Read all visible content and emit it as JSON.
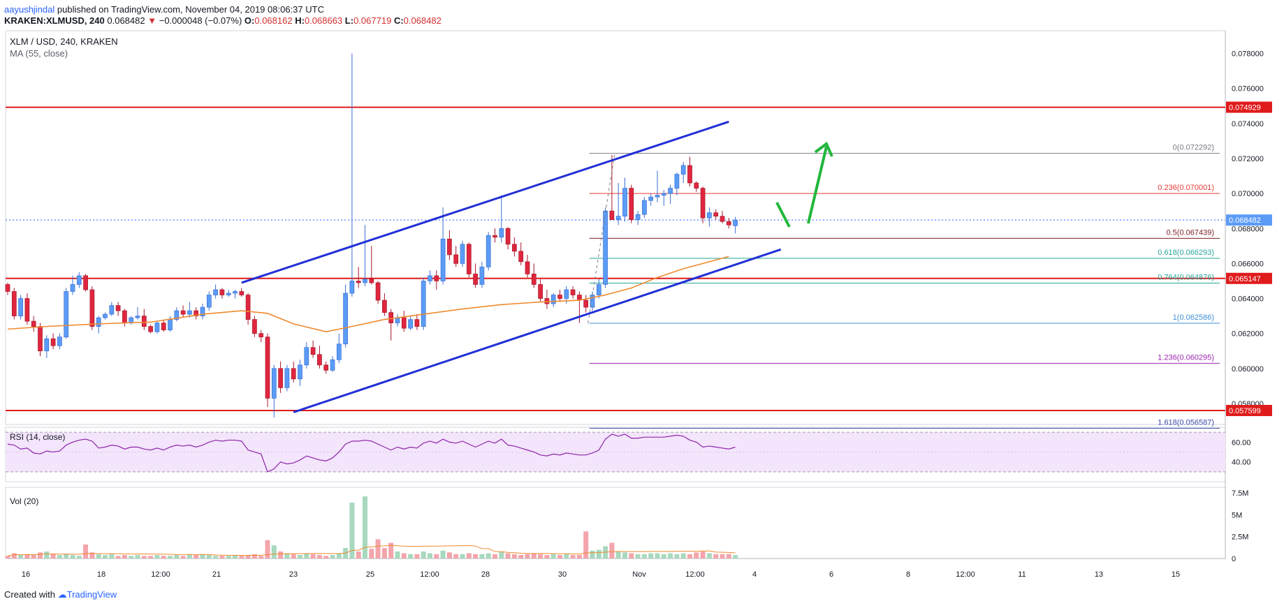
{
  "header": {
    "user": "aayushjindal",
    "published_text": "published on TradingView.com, November 04, 2019 08:06:37 UTC",
    "symbol_text": "KRAKEN:XLMUSD, 240",
    "last": "0.068482",
    "change": "−0.000048 (−0.07%)",
    "open_label": "O:",
    "open": "0.068162",
    "high_label": "H:",
    "high": "0.068663",
    "low_label": "L:",
    "low": "0.067719",
    "close_label": "C:",
    "close": "0.068482"
  },
  "colors": {
    "up": "#5b9cf6",
    "down": "#e0263f",
    "ma": "#ef8a2e",
    "channel": "#2130d6",
    "resistance": "#e01b1b",
    "arrow": "#22b73c",
    "rsi_line": "#8e24aa",
    "rsi_band": "#f3e5fb",
    "vol_up": "#a8d8be",
    "vol_down": "#f3a5ab"
  },
  "chart_data": [
    {
      "type": "candlestick",
      "title": "XLM / USD, 240, KRAKEN",
      "indicator_label": "MA (55, close)",
      "ylim": [
        0.0568,
        0.0793
      ],
      "y_ticks": [
        "0.078000",
        "0.076000",
        "0.074000",
        "0.072000",
        "0.070000",
        "0.068000",
        "0.066000",
        "0.064000",
        "0.062000",
        "0.060000",
        "0.058000"
      ],
      "x_ticks": [
        "16",
        "18",
        "12:00",
        "21",
        "23",
        "25",
        "12:00",
        "28",
        "30",
        "Nov",
        "12:00",
        "4",
        "6",
        "8",
        "12:00",
        "11",
        "13",
        "15"
      ],
      "last_price_label": "0.068482",
      "horizontal_levels": [
        "0.074929",
        "0.065147",
        "0.057599"
      ],
      "fibonacci": [
        {
          "label": "0(0.072292)",
          "value": 0.072292,
          "color": "#787b86"
        },
        {
          "label": "0.236(0.070001)",
          "value": 0.070001,
          "color": "#e53935"
        },
        {
          "label": "0.5(0.067439)",
          "value": 0.067439,
          "color": "#7b1e1e"
        },
        {
          "label": "0.618(0.066293)",
          "value": 0.066293,
          "color": "#26a69a"
        },
        {
          "label": "0.764(0.064876)",
          "value": 0.064876,
          "color": "#26a69a"
        },
        {
          "label": "1(0.062586)",
          "value": 0.062586,
          "color": "#3d8fd6"
        },
        {
          "label": "1.236(0.060295)",
          "value": 0.060295,
          "color": "#9c27b0"
        },
        {
          "label": "1.618(0.056587)",
          "value": 0.056587,
          "color": "#3949ab"
        }
      ],
      "candles": [
        [
          0.0648,
          0.0649,
          0.0642,
          0.0644
        ],
        [
          0.0644,
          0.0646,
          0.0628,
          0.063
        ],
        [
          0.063,
          0.0642,
          0.0628,
          0.064
        ],
        [
          0.064,
          0.0643,
          0.0625,
          0.0627
        ],
        [
          0.0627,
          0.063,
          0.0621,
          0.0624
        ],
        [
          0.0624,
          0.0626,
          0.0607,
          0.061
        ],
        [
          0.061,
          0.0619,
          0.0606,
          0.0617
        ],
        [
          0.0617,
          0.062,
          0.0611,
          0.0613
        ],
        [
          0.0613,
          0.062,
          0.0611,
          0.0618
        ],
        [
          0.0618,
          0.0646,
          0.0617,
          0.0644
        ],
        [
          0.0644,
          0.0653,
          0.0642,
          0.0648
        ],
        [
          0.0648,
          0.0655,
          0.0646,
          0.0653
        ],
        [
          0.0653,
          0.0654,
          0.0644,
          0.0645
        ],
        [
          0.0645,
          0.0647,
          0.0622,
          0.0624
        ],
        [
          0.0624,
          0.063,
          0.062,
          0.0629
        ],
        [
          0.0629,
          0.0632,
          0.0628,
          0.0631
        ],
        [
          0.0631,
          0.0638,
          0.063,
          0.0636
        ],
        [
          0.0636,
          0.0638,
          0.063,
          0.0633
        ],
        [
          0.0633,
          0.0634,
          0.0624,
          0.0626
        ],
        [
          0.0626,
          0.063,
          0.0625,
          0.0629
        ],
        [
          0.0629,
          0.0635,
          0.0628,
          0.063
        ],
        [
          0.063,
          0.0634,
          0.0622,
          0.0624
        ],
        [
          0.0624,
          0.0625,
          0.062,
          0.0621
        ],
        [
          0.0621,
          0.0627,
          0.062,
          0.0626
        ],
        [
          0.0626,
          0.0628,
          0.0621,
          0.0622
        ],
        [
          0.0622,
          0.063,
          0.0621,
          0.0628
        ],
        [
          0.0628,
          0.0635,
          0.0627,
          0.0633
        ],
        [
          0.0633,
          0.0636,
          0.0629,
          0.0631
        ],
        [
          0.0631,
          0.0638,
          0.0629,
          0.0633
        ],
        [
          0.0633,
          0.0635,
          0.0628,
          0.063
        ],
        [
          0.063,
          0.0637,
          0.0628,
          0.0635
        ],
        [
          0.0635,
          0.0644,
          0.0633,
          0.0642
        ],
        [
          0.0642,
          0.0648,
          0.064,
          0.0645
        ],
        [
          0.0645,
          0.0646,
          0.064,
          0.0642
        ],
        [
          0.0642,
          0.0645,
          0.0641,
          0.0643
        ],
        [
          0.0643,
          0.0645,
          0.064,
          0.0644
        ],
        [
          0.0644,
          0.0646,
          0.0641,
          0.0642
        ],
        [
          0.0642,
          0.0643,
          0.0625,
          0.0628
        ],
        [
          0.0628,
          0.063,
          0.0618,
          0.062
        ],
        [
          0.062,
          0.0622,
          0.0615,
          0.0618
        ],
        [
          0.0618,
          0.062,
          0.0578,
          0.0583
        ],
        [
          0.0583,
          0.0602,
          0.0572,
          0.06
        ],
        [
          0.06,
          0.0604,
          0.0586,
          0.0589
        ],
        [
          0.0589,
          0.0602,
          0.0587,
          0.06
        ],
        [
          0.06,
          0.0604,
          0.0592,
          0.0594
        ],
        [
          0.0594,
          0.0605,
          0.059,
          0.0602
        ],
        [
          0.0602,
          0.0615,
          0.06,
          0.0612
        ],
        [
          0.0612,
          0.0616,
          0.0606,
          0.0608
        ],
        [
          0.0608,
          0.0613,
          0.06,
          0.0602
        ],
        [
          0.0602,
          0.0604,
          0.0597,
          0.0599
        ],
        [
          0.0599,
          0.0607,
          0.0598,
          0.0605
        ],
        [
          0.0605,
          0.062,
          0.0603,
          0.0614
        ],
        [
          0.0614,
          0.0648,
          0.0612,
          0.0643
        ],
        [
          0.0643,
          0.078,
          0.0641,
          0.065
        ],
        [
          0.065,
          0.0658,
          0.0646,
          0.0649
        ],
        [
          0.0649,
          0.0682,
          0.0647,
          0.0651
        ],
        [
          0.0651,
          0.067,
          0.0648,
          0.0649
        ],
        [
          0.0649,
          0.065,
          0.0637,
          0.0639
        ],
        [
          0.0639,
          0.0643,
          0.063,
          0.0632
        ],
        [
          0.0632,
          0.0634,
          0.0616,
          0.0626
        ],
        [
          0.0626,
          0.0631,
          0.0624,
          0.0629
        ],
        [
          0.0629,
          0.0633,
          0.0621,
          0.0623
        ],
        [
          0.0623,
          0.063,
          0.0622,
          0.0628
        ],
        [
          0.0628,
          0.0631,
          0.0622,
          0.0624
        ],
        [
          0.0624,
          0.0652,
          0.0622,
          0.065
        ],
        [
          0.065,
          0.0656,
          0.0648,
          0.0653
        ],
        [
          0.0653,
          0.0656,
          0.0645,
          0.065
        ],
        [
          0.065,
          0.0692,
          0.0648,
          0.0674
        ],
        [
          0.0674,
          0.0679,
          0.0662,
          0.0665
        ],
        [
          0.0665,
          0.067,
          0.0658,
          0.066
        ],
        [
          0.066,
          0.0673,
          0.0658,
          0.0671
        ],
        [
          0.0671,
          0.0672,
          0.0652,
          0.0654
        ],
        [
          0.0654,
          0.066,
          0.0646,
          0.0648
        ],
        [
          0.0648,
          0.0661,
          0.0646,
          0.0658
        ],
        [
          0.0658,
          0.0678,
          0.0656,
          0.0676
        ],
        [
          0.0676,
          0.068,
          0.0672,
          0.0675
        ],
        [
          0.0675,
          0.0699,
          0.0672,
          0.068
        ],
        [
          0.068,
          0.0681,
          0.0668,
          0.0671
        ],
        [
          0.0671,
          0.0675,
          0.0664,
          0.0667
        ],
        [
          0.0667,
          0.0672,
          0.0659,
          0.0661
        ],
        [
          0.0661,
          0.0665,
          0.0652,
          0.0654
        ],
        [
          0.0654,
          0.066,
          0.0646,
          0.0648
        ],
        [
          0.0648,
          0.0651,
          0.0638,
          0.064
        ],
        [
          0.064,
          0.0645,
          0.0634,
          0.0637
        ],
        [
          0.0637,
          0.0643,
          0.0635,
          0.0642
        ],
        [
          0.0642,
          0.0645,
          0.0638,
          0.064
        ],
        [
          0.064,
          0.0647,
          0.0637,
          0.0645
        ],
        [
          0.0645,
          0.0647,
          0.064,
          0.0642
        ],
        [
          0.0642,
          0.0644,
          0.0626,
          0.0639
        ],
        [
          0.0639,
          0.0642,
          0.0632,
          0.0635
        ],
        [
          0.0635,
          0.0644,
          0.0633,
          0.0642
        ],
        [
          0.0642,
          0.0651,
          0.064,
          0.0648
        ],
        [
          0.0648,
          0.0692,
          0.0646,
          0.069
        ],
        [
          0.069,
          0.0722,
          0.0685,
          0.0685
        ],
        [
          0.0685,
          0.0706,
          0.0682,
          0.0687
        ],
        [
          0.0687,
          0.0709,
          0.0684,
          0.0703
        ],
        [
          0.0703,
          0.0705,
          0.0683,
          0.0685
        ],
        [
          0.0685,
          0.069,
          0.0682,
          0.0688
        ],
        [
          0.0688,
          0.0698,
          0.0686,
          0.0696
        ],
        [
          0.0696,
          0.07,
          0.0693,
          0.0698
        ],
        [
          0.0698,
          0.0713,
          0.0695,
          0.0699
        ],
        [
          0.0699,
          0.0702,
          0.0693,
          0.07
        ],
        [
          0.07,
          0.0705,
          0.0694,
          0.0703
        ],
        [
          0.0703,
          0.0712,
          0.0699,
          0.0711
        ],
        [
          0.0711,
          0.0718,
          0.0706,
          0.0716
        ],
        [
          0.0716,
          0.0721,
          0.0704,
          0.0706
        ],
        [
          0.0706,
          0.0707,
          0.0701,
          0.0703
        ],
        [
          0.0703,
          0.0704,
          0.0683,
          0.0686
        ],
        [
          0.0686,
          0.0692,
          0.0681,
          0.0689
        ],
        [
          0.0689,
          0.0691,
          0.0685,
          0.0687
        ],
        [
          0.0687,
          0.069,
          0.0683,
          0.0684
        ],
        [
          0.0684,
          0.0686,
          0.068,
          0.0682
        ],
        [
          0.06816,
          0.06866,
          0.06772,
          0.06848
        ]
      ],
      "ma_55": [
        [
          0,
          0.06225
        ],
        [
          6,
          0.0624
        ],
        [
          14,
          0.06255
        ],
        [
          22,
          0.06265
        ],
        [
          30,
          0.0631
        ],
        [
          36,
          0.0633
        ],
        [
          40,
          0.06315
        ],
        [
          44,
          0.06255
        ],
        [
          49,
          0.0621
        ],
        [
          53,
          0.0624
        ],
        [
          58,
          0.0628
        ],
        [
          63,
          0.06305
        ],
        [
          70,
          0.0634
        ],
        [
          76,
          0.06365
        ],
        [
          82,
          0.0638
        ],
        [
          88,
          0.0639
        ],
        [
          92,
          0.0642
        ],
        [
          96,
          0.0646
        ],
        [
          100,
          0.0652
        ],
        [
          104,
          0.0657
        ],
        [
          108,
          0.0661
        ],
        [
          111,
          0.0664
        ]
      ],
      "channel_upper": [
        [
          0.0649,
          0.0741
        ],
        [
          36,
          111
        ]
      ],
      "channel_lower": [
        [
          0.0575,
          0.0668
        ],
        [
          44,
          119
        ]
      ]
    },
    {
      "type": "line",
      "title": "RSI (14, close)",
      "y_ticks": [
        "60.00",
        "40.00"
      ],
      "ylim": [
        20,
        75
      ],
      "band": [
        30,
        70
      ],
      "values": [
        58,
        57,
        53,
        54,
        49,
        48,
        51,
        50,
        51,
        57,
        60,
        62,
        63,
        61,
        54,
        55,
        57,
        56,
        53,
        55,
        55,
        53,
        52,
        54,
        52,
        55,
        57,
        56,
        57,
        55,
        57,
        60,
        62,
        61,
        62,
        62,
        61,
        52,
        50,
        48,
        30,
        33,
        40,
        38,
        39,
        42,
        46,
        44,
        42,
        41,
        44,
        50,
        58,
        61,
        61,
        62,
        61,
        58,
        55,
        52,
        55,
        53,
        55,
        54,
        59,
        61,
        59,
        63,
        60,
        59,
        61,
        58,
        55,
        58,
        61,
        59,
        63,
        57,
        56,
        54,
        52,
        50,
        47,
        46,
        48,
        47,
        49,
        48,
        47,
        47,
        49,
        52,
        63,
        68,
        66,
        68,
        64,
        64,
        65,
        65,
        65,
        65,
        66,
        67,
        66,
        62,
        60,
        55,
        56,
        55,
        54,
        53,
        55
      ]
    },
    {
      "type": "bar",
      "title": "Vol (20)",
      "y_ticks": [
        "7.5M",
        "5M",
        "2.5M",
        "0"
      ],
      "ylim": [
        0,
        7.5
      ],
      "values": [
        0.3,
        0.6,
        0.4,
        0.5,
        0.4,
        0.7,
        0.8,
        0.5,
        0.4,
        0.5,
        0.4,
        0.3,
        1.6,
        0.7,
        0.5,
        0.4,
        0.5,
        0.3,
        0.4,
        0.3,
        0.4,
        0.3,
        0.3,
        0.4,
        0.3,
        0.3,
        0.4,
        0.3,
        0.5,
        0.4,
        0.5,
        0.4,
        0.3,
        0.3,
        0.3,
        0.4,
        0.3,
        0.4,
        0.5,
        0.3,
        2.1,
        1.5,
        0.8,
        0.6,
        0.5,
        0.4,
        0.6,
        0.5,
        0.4,
        0.3,
        0.4,
        0.6,
        1.2,
        6.4,
        0.8,
        7.1,
        1.1,
        2.2,
        1.2,
        1.8,
        0.8,
        0.6,
        0.5,
        0.5,
        0.8,
        0.6,
        0.5,
        0.9,
        0.7,
        0.5,
        0.5,
        0.6,
        0.5,
        0.5,
        0.6,
        0.5,
        0.8,
        0.6,
        0.5,
        0.4,
        0.5,
        0.6,
        0.5,
        0.4,
        0.5,
        0.4,
        0.5,
        0.4,
        0.4,
        3.1,
        0.9,
        1.0,
        1.4,
        1.8,
        0.8,
        0.7,
        0.6,
        0.5,
        0.5,
        0.6,
        0.6,
        0.5,
        0.6,
        0.5,
        0.6,
        0.5,
        0.7,
        0.8,
        0.6,
        0.5,
        0.5,
        0.5,
        0.4
      ]
    }
  ],
  "footer": {
    "created_with": "Created with",
    "brand": "TradingView"
  }
}
